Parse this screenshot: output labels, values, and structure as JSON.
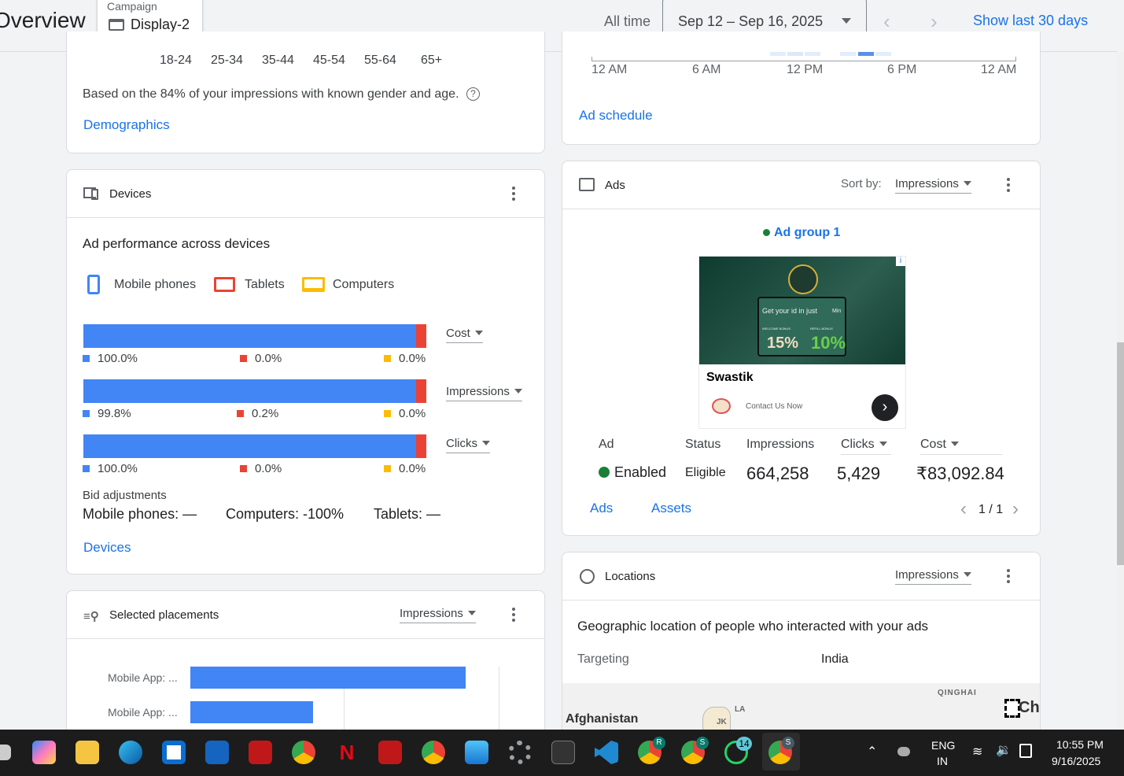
{
  "header": {
    "title": "Overview",
    "campaign_label": "Campaign",
    "campaign_name": "Display-2",
    "all_time": "All time",
    "date_range": "Sep 12 – Sep 16, 2025",
    "show_last": "Show last 30 days"
  },
  "demographics": {
    "age_ticks": [
      "18-24",
      "25-34",
      "35-44",
      "45-54",
      "55-64",
      "65+"
    ],
    "note": "Based on the 84% of your impressions with known gender and age.",
    "link": "Demographics"
  },
  "schedule": {
    "ticks": [
      "12 AM",
      "6 AM",
      "12 PM",
      "6 PM",
      "12 AM"
    ],
    "link": "Ad schedule"
  },
  "devices": {
    "title": "Devices",
    "subtitle": "Ad performance across devices",
    "legend": [
      "Mobile phones",
      "Tablets",
      "Computers"
    ],
    "colors": {
      "mobile": "#4285f4",
      "tablets": "#ea4335",
      "computers": "#fbbc04"
    },
    "metrics": [
      {
        "label": "Cost",
        "mobile": "100.0%",
        "tablets": "0.0%",
        "computers": "0.0%",
        "mobile_share": 100
      },
      {
        "label": "Impressions",
        "mobile": "99.8%",
        "tablets": "0.2%",
        "computers": "0.0%",
        "mobile_share": 99.8
      },
      {
        "label": "Clicks",
        "mobile": "100.0%",
        "tablets": "0.0%",
        "computers": "0.0%",
        "mobile_share": 100
      }
    ],
    "bid_label": "Bid adjustments",
    "bid_mobile": "Mobile phones: —",
    "bid_computers": "Computers: -100%",
    "bid_tablets": "Tablets: —",
    "link": "Devices"
  },
  "placements": {
    "title": "Selected placements",
    "sort": "Impressions",
    "rows": [
      {
        "label": "Mobile App: ...",
        "value": 100
      },
      {
        "label": "Mobile App: ...",
        "value": 44.6
      }
    ]
  },
  "ads": {
    "title": "Ads",
    "sort_label": "Sort by:",
    "sort": "Impressions",
    "group": "Ad group 1",
    "preview": {
      "headline": "Get your id in just",
      "min": "Min",
      "bonus1_label": "WELCOME BONUS",
      "bonus1": "15%",
      "bonus2_label": "REFILL BONUS",
      "bonus2": "10%",
      "brand": "Swastik",
      "cta": "Contact Us Now"
    },
    "columns": [
      "Ad",
      "Status",
      "Impressions",
      "Clicks",
      "Cost"
    ],
    "row": {
      "ad": "Enabled",
      "status": "Eligible",
      "impressions": "664,258",
      "clicks": "5,429",
      "cost": "₹83,092.84"
    },
    "tab_ads": "Ads",
    "tab_assets": "Assets",
    "pager": "1 / 1"
  },
  "locations": {
    "title": "Locations",
    "sort": "Impressions",
    "subtitle": "Geographic location of people who interacted with your ads",
    "targeting_label": "Targeting",
    "targeting_value": "India",
    "map_labels": [
      "Afghanistan",
      "QINGHAI",
      "LA",
      "JK",
      "Chi"
    ]
  },
  "taskbar": {
    "lang": "ENG",
    "region": "IN",
    "time": "10:55 PM",
    "date": "9/16/2025",
    "whatsapp_badge": "14",
    "profiles": [
      "R",
      "S",
      "S"
    ]
  }
}
